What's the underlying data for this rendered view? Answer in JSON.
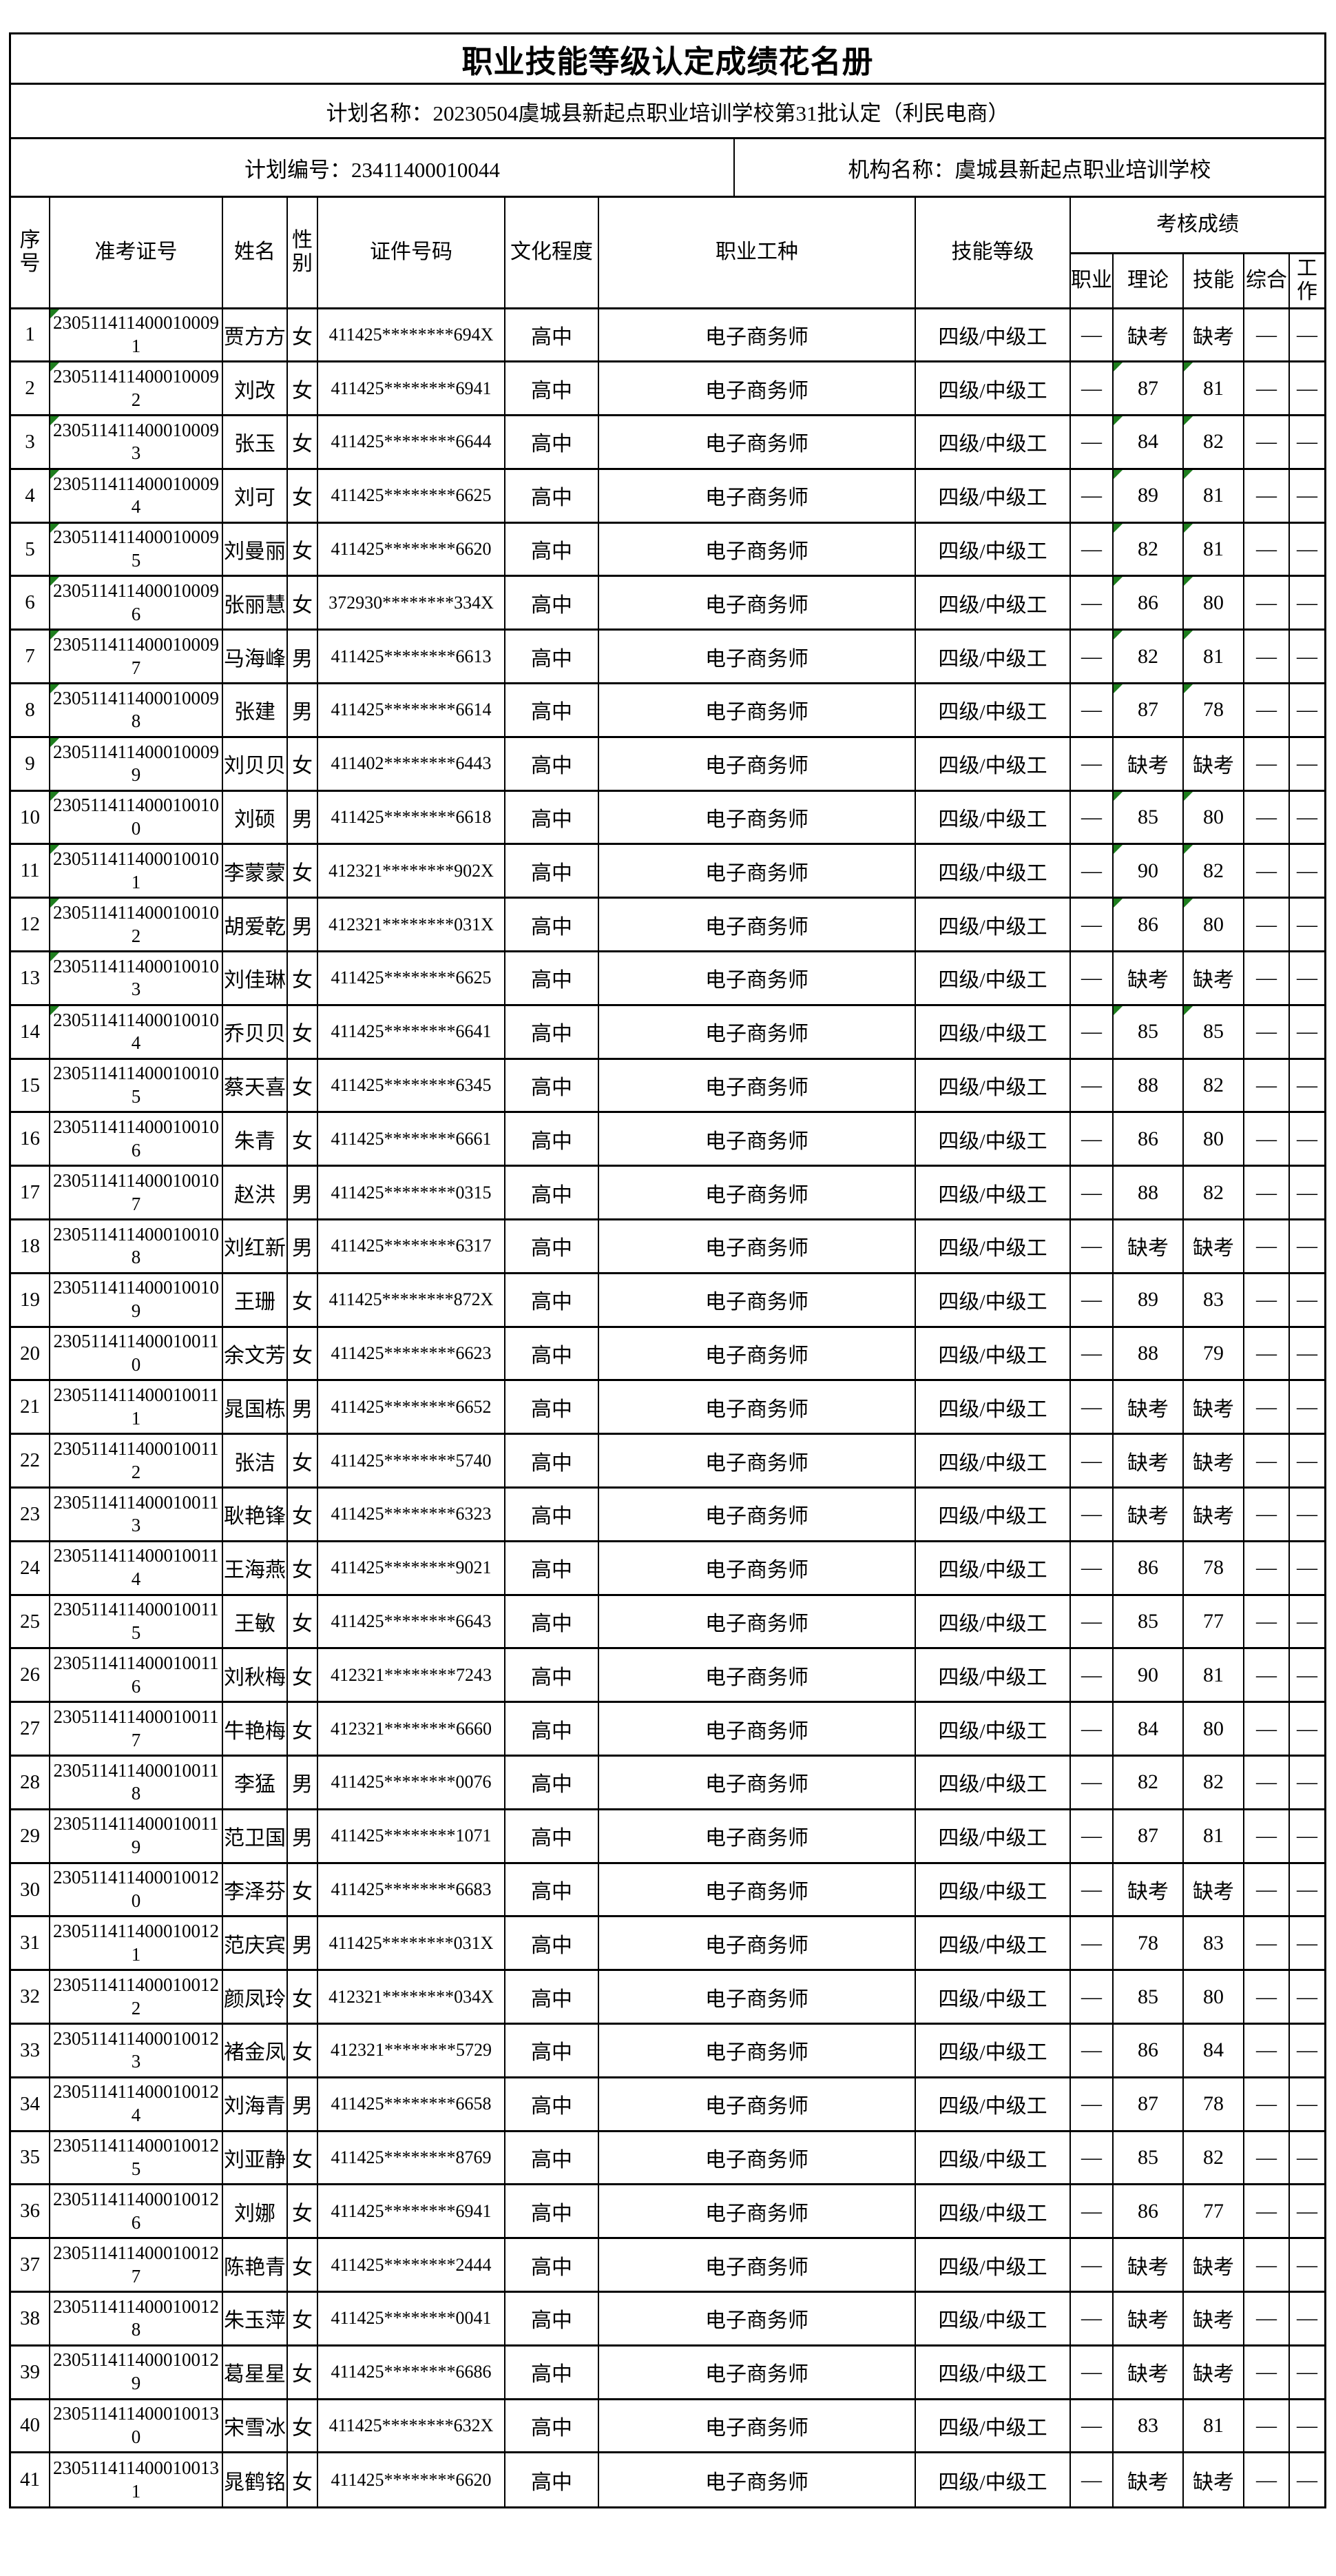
{
  "title": "职业技能等级认定成绩花名册",
  "plan_name": "计划名称：20230504虞城县新起点职业培训学校第31批认定（利民电商）",
  "plan_number": "计划编号：23411400010044",
  "organization": "机构名称：虞城县新起点职业培训学校",
  "header": {
    "seq": "序号",
    "ticket": "准考证号",
    "name": "姓名",
    "sex": "性别",
    "cert": "证件号码",
    "edu": "文化程度",
    "occupation": "职业工种",
    "level": "技能等级",
    "score_group": "考核成绩",
    "score_cols": [
      "职业",
      "理论",
      "技能",
      "综合",
      "工作"
    ]
  },
  "colors": {
    "triangle_green": "#1e7e1e",
    "border_black": "#000000"
  },
  "row_constants": {
    "edu": "高中",
    "occupation": "电子商务师",
    "level": "四级/中级工",
    "occ": "—",
    "comp": "—",
    "work": "—"
  },
  "rows": [
    {
      "seq": 1,
      "ticket": "2305114114000100091",
      "name": "贾方方",
      "sex": "女",
      "cert": "411425********694X",
      "theory": "缺考",
      "skill": "缺考",
      "id_tri": true,
      "score_tri": false
    },
    {
      "seq": 2,
      "ticket": "2305114114000100092",
      "name": "刘改",
      "sex": "女",
      "cert": "411425********6941",
      "theory": "87",
      "skill": "81",
      "id_tri": true,
      "score_tri": true
    },
    {
      "seq": 3,
      "ticket": "2305114114000100093",
      "name": "张玉",
      "sex": "女",
      "cert": "411425********6644",
      "theory": "84",
      "skill": "82",
      "id_tri": true,
      "score_tri": true
    },
    {
      "seq": 4,
      "ticket": "2305114114000100094",
      "name": "刘可",
      "sex": "女",
      "cert": "411425********6625",
      "theory": "89",
      "skill": "81",
      "id_tri": true,
      "score_tri": true
    },
    {
      "seq": 5,
      "ticket": "2305114114000100095",
      "name": "刘曼丽",
      "sex": "女",
      "cert": "411425********6620",
      "theory": "82",
      "skill": "81",
      "id_tri": true,
      "score_tri": true
    },
    {
      "seq": 6,
      "ticket": "2305114114000100096",
      "name": "张丽慧",
      "sex": "女",
      "cert": "372930********334X",
      "theory": "86",
      "skill": "80",
      "id_tri": true,
      "score_tri": true
    },
    {
      "seq": 7,
      "ticket": "2305114114000100097",
      "name": "马海峰",
      "sex": "男",
      "cert": "411425********6613",
      "theory": "82",
      "skill": "81",
      "id_tri": true,
      "score_tri": true
    },
    {
      "seq": 8,
      "ticket": "2305114114000100098",
      "name": "张建",
      "sex": "男",
      "cert": "411425********6614",
      "theory": "87",
      "skill": "78",
      "id_tri": true,
      "score_tri": true
    },
    {
      "seq": 9,
      "ticket": "2305114114000100099",
      "name": "刘贝贝",
      "sex": "女",
      "cert": "411402********6443",
      "theory": "缺考",
      "skill": "缺考",
      "id_tri": true,
      "score_tri": false
    },
    {
      "seq": 10,
      "ticket": "2305114114000100100",
      "name": "刘硕",
      "sex": "男",
      "cert": "411425********6618",
      "theory": "85",
      "skill": "80",
      "id_tri": true,
      "score_tri": true
    },
    {
      "seq": 11,
      "ticket": "2305114114000100101",
      "name": "李蒙蒙",
      "sex": "女",
      "cert": "412321********902X",
      "theory": "90",
      "skill": "82",
      "id_tri": true,
      "score_tri": true
    },
    {
      "seq": 12,
      "ticket": "2305114114000100102",
      "name": "胡爱乾",
      "sex": "男",
      "cert": "412321********031X",
      "theory": "86",
      "skill": "80",
      "id_tri": true,
      "score_tri": true
    },
    {
      "seq": 13,
      "ticket": "2305114114000100103",
      "name": "刘佳琳",
      "sex": "女",
      "cert": "411425********6625",
      "theory": "缺考",
      "skill": "缺考",
      "id_tri": true,
      "score_tri": false
    },
    {
      "seq": 14,
      "ticket": "2305114114000100104",
      "name": "乔贝贝",
      "sex": "女",
      "cert": "411425********6641",
      "theory": "85",
      "skill": "85",
      "id_tri": true,
      "score_tri": true
    },
    {
      "seq": 15,
      "ticket": "2305114114000100105",
      "name": "蔡天喜",
      "sex": "女",
      "cert": "411425********6345",
      "theory": "88",
      "skill": "82",
      "id_tri": false,
      "score_tri": false
    },
    {
      "seq": 16,
      "ticket": "2305114114000100106",
      "name": "朱青",
      "sex": "女",
      "cert": "411425********6661",
      "theory": "86",
      "skill": "80",
      "id_tri": false,
      "score_tri": false
    },
    {
      "seq": 17,
      "ticket": "2305114114000100107",
      "name": "赵洪",
      "sex": "男",
      "cert": "411425********0315",
      "theory": "88",
      "skill": "82",
      "id_tri": false,
      "score_tri": false
    },
    {
      "seq": 18,
      "ticket": "2305114114000100108",
      "name": "刘红新",
      "sex": "男",
      "cert": "411425********6317",
      "theory": "缺考",
      "skill": "缺考",
      "id_tri": false,
      "score_tri": false
    },
    {
      "seq": 19,
      "ticket": "2305114114000100109",
      "name": "王珊",
      "sex": "女",
      "cert": "411425********872X",
      "theory": "89",
      "skill": "83",
      "id_tri": false,
      "score_tri": false
    },
    {
      "seq": 20,
      "ticket": "2305114114000100110",
      "name": "余文芳",
      "sex": "女",
      "cert": "411425********6623",
      "theory": "88",
      "skill": "79",
      "id_tri": false,
      "score_tri": false
    },
    {
      "seq": 21,
      "ticket": "2305114114000100111",
      "name": "晁国栋",
      "sex": "男",
      "cert": "411425********6652",
      "theory": "缺考",
      "skill": "缺考",
      "id_tri": false,
      "score_tri": false
    },
    {
      "seq": 22,
      "ticket": "2305114114000100112",
      "name": "张洁",
      "sex": "女",
      "cert": "411425********5740",
      "theory": "缺考",
      "skill": "缺考",
      "id_tri": false,
      "score_tri": false
    },
    {
      "seq": 23,
      "ticket": "2305114114000100113",
      "name": "耿艳锋",
      "sex": "女",
      "cert": "411425********6323",
      "theory": "缺考",
      "skill": "缺考",
      "id_tri": false,
      "score_tri": false
    },
    {
      "seq": 24,
      "ticket": "2305114114000100114",
      "name": "王海燕",
      "sex": "女",
      "cert": "411425********9021",
      "theory": "86",
      "skill": "78",
      "id_tri": false,
      "score_tri": false
    },
    {
      "seq": 25,
      "ticket": "2305114114000100115",
      "name": "王敏",
      "sex": "女",
      "cert": "411425********6643",
      "theory": "85",
      "skill": "77",
      "id_tri": false,
      "score_tri": false
    },
    {
      "seq": 26,
      "ticket": "2305114114000100116",
      "name": "刘秋梅",
      "sex": "女",
      "cert": "412321********7243",
      "theory": "90",
      "skill": "81",
      "id_tri": false,
      "score_tri": false
    },
    {
      "seq": 27,
      "ticket": "2305114114000100117",
      "name": "牛艳梅",
      "sex": "女",
      "cert": "412321********6660",
      "theory": "84",
      "skill": "80",
      "id_tri": false,
      "score_tri": false
    },
    {
      "seq": 28,
      "ticket": "2305114114000100118",
      "name": "李猛",
      "sex": "男",
      "cert": "411425********0076",
      "theory": "82",
      "skill": "82",
      "id_tri": false,
      "score_tri": false
    },
    {
      "seq": 29,
      "ticket": "2305114114000100119",
      "name": "范卫国",
      "sex": "男",
      "cert": "411425********1071",
      "theory": "87",
      "skill": "81",
      "id_tri": false,
      "score_tri": false
    },
    {
      "seq": 30,
      "ticket": "2305114114000100120",
      "name": "李泽芬",
      "sex": "女",
      "cert": "411425********6683",
      "theory": "缺考",
      "skill": "缺考",
      "id_tri": false,
      "score_tri": false
    },
    {
      "seq": 31,
      "ticket": "2305114114000100121",
      "name": "范庆宾",
      "sex": "男",
      "cert": "411425********031X",
      "theory": "78",
      "skill": "83",
      "id_tri": false,
      "score_tri": false
    },
    {
      "seq": 32,
      "ticket": "2305114114000100122",
      "name": "颜凤玲",
      "sex": "女",
      "cert": "412321********034X",
      "theory": "85",
      "skill": "80",
      "id_tri": false,
      "score_tri": false
    },
    {
      "seq": 33,
      "ticket": "2305114114000100123",
      "name": "褚金凤",
      "sex": "女",
      "cert": "412321********5729",
      "theory": "86",
      "skill": "84",
      "id_tri": false,
      "score_tri": false
    },
    {
      "seq": 34,
      "ticket": "2305114114000100124",
      "name": "刘海青",
      "sex": "男",
      "cert": "411425********6658",
      "theory": "87",
      "skill": "78",
      "id_tri": false,
      "score_tri": false
    },
    {
      "seq": 35,
      "ticket": "2305114114000100125",
      "name": "刘亚静",
      "sex": "女",
      "cert": "411425********8769",
      "theory": "85",
      "skill": "82",
      "id_tri": false,
      "score_tri": false
    },
    {
      "seq": 36,
      "ticket": "2305114114000100126",
      "name": "刘娜",
      "sex": "女",
      "cert": "411425********6941",
      "theory": "86",
      "skill": "77",
      "id_tri": false,
      "score_tri": false
    },
    {
      "seq": 37,
      "ticket": "2305114114000100127",
      "name": "陈艳青",
      "sex": "女",
      "cert": "411425********2444",
      "theory": "缺考",
      "skill": "缺考",
      "id_tri": false,
      "score_tri": false
    },
    {
      "seq": 38,
      "ticket": "2305114114000100128",
      "name": "朱玉萍",
      "sex": "女",
      "cert": "411425********0041",
      "theory": "缺考",
      "skill": "缺考",
      "id_tri": false,
      "score_tri": false
    },
    {
      "seq": 39,
      "ticket": "2305114114000100129",
      "name": "葛星星",
      "sex": "女",
      "cert": "411425********6686",
      "theory": "缺考",
      "skill": "缺考",
      "id_tri": false,
      "score_tri": false
    },
    {
      "seq": 40,
      "ticket": "2305114114000100130",
      "name": "宋雪冰",
      "sex": "女",
      "cert": "411425********632X",
      "theory": "83",
      "skill": "81",
      "id_tri": false,
      "score_tri": false
    },
    {
      "seq": 41,
      "ticket": "2305114114000100131",
      "name": "晁鹤铭",
      "sex": "女",
      "cert": "411425********6620",
      "theory": "缺考",
      "skill": "缺考",
      "id_tri": false,
      "score_tri": false
    }
  ]
}
